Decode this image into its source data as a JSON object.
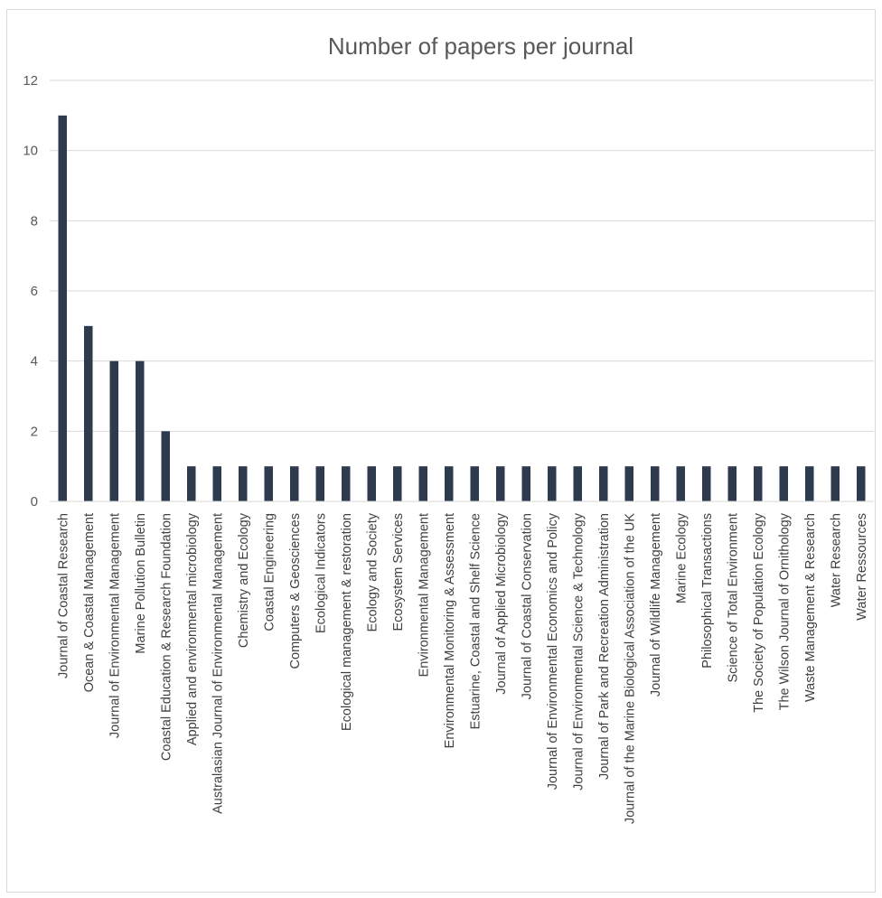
{
  "chart_data": {
    "type": "bar",
    "title": "Number of papers per journal",
    "xlabel": "",
    "ylabel": "",
    "ylim": [
      0,
      12
    ],
    "yticks": [
      0,
      2,
      4,
      6,
      8,
      10,
      12
    ],
    "grid": true,
    "legend": "none",
    "bar_color": "#2e3a4e",
    "categories": [
      "Journal of Coastal Research",
      "Ocean & Coastal Management",
      "Journal of Environmental Management",
      "Marine Pollution Bulletin",
      "Coastal Education & Research Foundation",
      "Applied and environmental microbiology",
      "Australasian Journal of Environmental Management",
      "Chemistry and Ecology",
      "Coastal Engineering",
      "Computers & Geosciences",
      "Ecological Indicators",
      "Ecological management & restoration",
      "Ecology and Society",
      "Ecosystem Services",
      "Environmental Management",
      "Environmental Monitoring & Assessment",
      "Estuarine, Coastal and Shelf Science",
      "Journal of Applied Microbiology",
      "Journal of Coastal Conservation",
      "Journal of Environmental Economics and Policy",
      "Journal of Environmental Science & Technology",
      "Journal of Park and Recreation Administration",
      "Journal of the Marine Biological Association of the UK",
      "Journal of Wildlife Management",
      "Marine Ecology",
      "Philosophical Transactions",
      "Science of Total Environment",
      "The Society of Population Ecology",
      "The Wilson Journal of Ornithology",
      "Waste Management & Research",
      "Water Research",
      "Water Ressources"
    ],
    "values": [
      11,
      5,
      4,
      4,
      2,
      1,
      1,
      1,
      1,
      1,
      1,
      1,
      1,
      1,
      1,
      1,
      1,
      1,
      1,
      1,
      1,
      1,
      1,
      1,
      1,
      1,
      1,
      1,
      1,
      1,
      1,
      1
    ]
  }
}
